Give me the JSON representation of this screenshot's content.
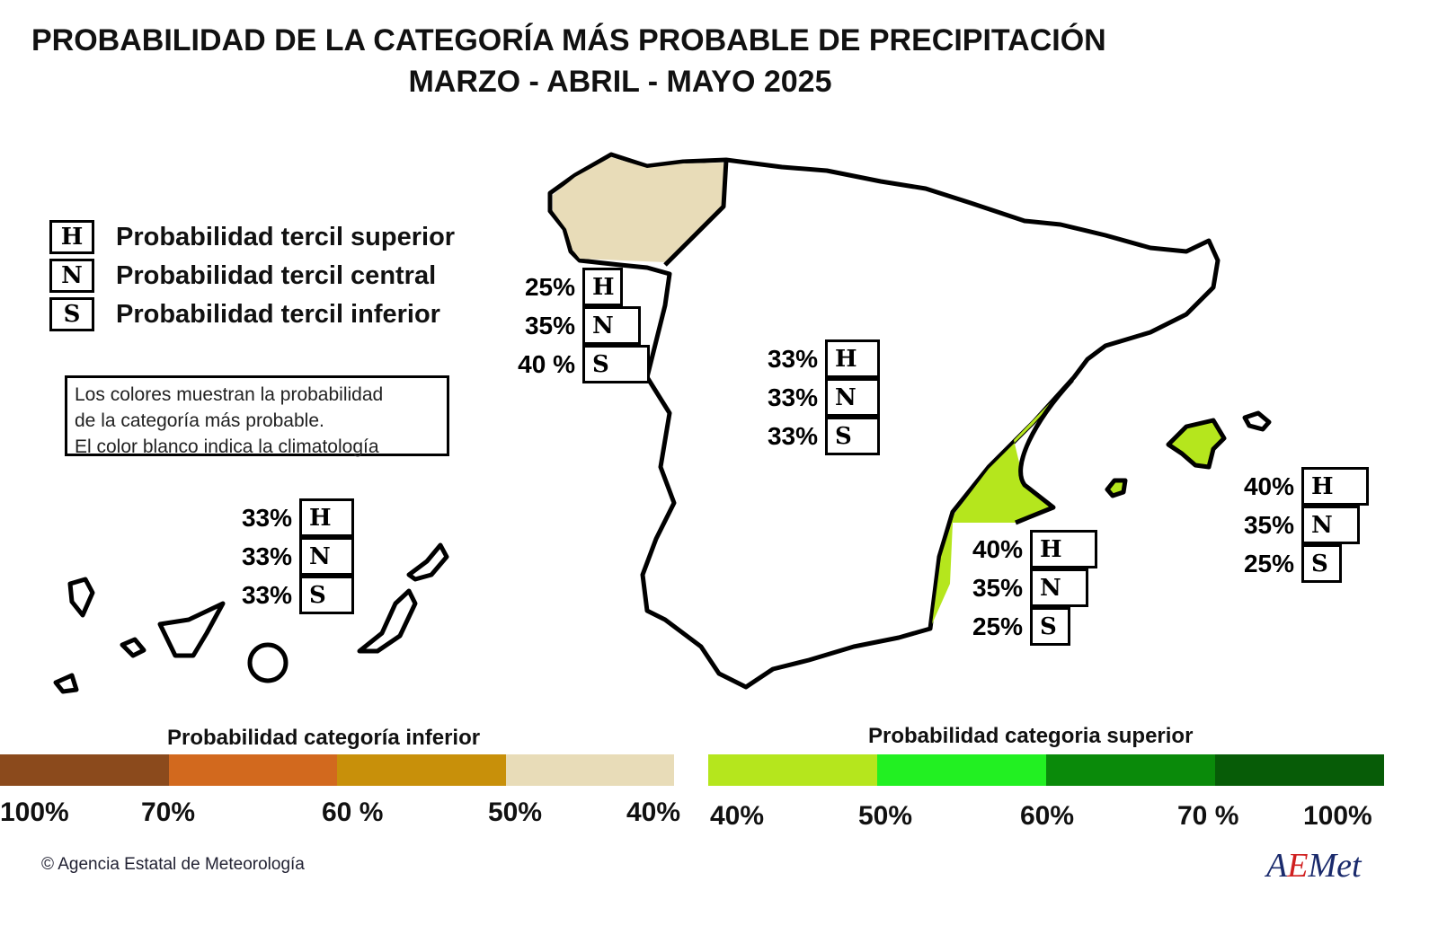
{
  "title_line1": "PROBABILIDAD DE LA CATEGORÍA MÁS PROBABLE DE PRECIPITACIÓN",
  "title_line2": "MARZO - ABRIL - MAYO 2025",
  "legend": [
    {
      "letter": "H",
      "label": "Probabilidad  tercil superior"
    },
    {
      "letter": "N",
      "label": "Probabilidad  tercil central"
    },
    {
      "letter": "S",
      "label": "Probabilidad  tercil inferior"
    }
  ],
  "note": [
    "Los colores muestran la probabilidad",
    "de la categoría más probable.",
    "El color blanco indica la climatología"
  ],
  "regions": {
    "galicia": {
      "fill": "#e8dcb8",
      "rows": [
        {
          "pct": "25%",
          "letter": "H",
          "value": 25
        },
        {
          "pct": "35%",
          "letter": "N",
          "value": 35
        },
        {
          "pct": "40 %",
          "letter": "S",
          "value": 40
        }
      ]
    },
    "centro": {
      "fill": "#ffffff",
      "rows": [
        {
          "pct": "33%",
          "letter": "H",
          "value": 33
        },
        {
          "pct": "33%",
          "letter": "N",
          "value": 33
        },
        {
          "pct": "33%",
          "letter": "S",
          "value": 33
        }
      ]
    },
    "levante": {
      "fill": "#b5e61d",
      "rows": [
        {
          "pct": "40%",
          "letter": "H",
          "value": 40
        },
        {
          "pct": "35%",
          "letter": "N",
          "value": 35
        },
        {
          "pct": "25%",
          "letter": "S",
          "value": 25
        }
      ]
    },
    "baleares": {
      "fill": "#b5e61d",
      "rows": [
        {
          "pct": "40%",
          "letter": "H",
          "value": 40
        },
        {
          "pct": "35%",
          "letter": "N",
          "value": 35
        },
        {
          "pct": "25%",
          "letter": "S",
          "value": 25
        }
      ]
    },
    "canarias": {
      "fill": "#ffffff",
      "rows": [
        {
          "pct": "33%",
          "letter": "H",
          "value": 33
        },
        {
          "pct": "33%",
          "letter": "N",
          "value": 33
        },
        {
          "pct": "33%",
          "letter": "S",
          "value": 33
        }
      ]
    }
  },
  "colorbar_inferior": {
    "title": "Probabilidad categoría inferior",
    "colors": [
      "#8b4a1c",
      "#d2691e",
      "#c8900a",
      "#e8dcb8"
    ],
    "ticks": [
      "100%",
      "70%",
      "60 %",
      "50%",
      "40%"
    ]
  },
  "colorbar_superior": {
    "title": "Probabilidad categoria superior",
    "colors": [
      "#b5e61d",
      "#22f022",
      "#0a8a0a",
      "#075c07"
    ],
    "ticks": [
      "40%",
      "50%",
      "60%",
      "70 %",
      "100%"
    ]
  },
  "copyright": "Agencia Estatal de Meteorología",
  "logo_text": "AEMet"
}
